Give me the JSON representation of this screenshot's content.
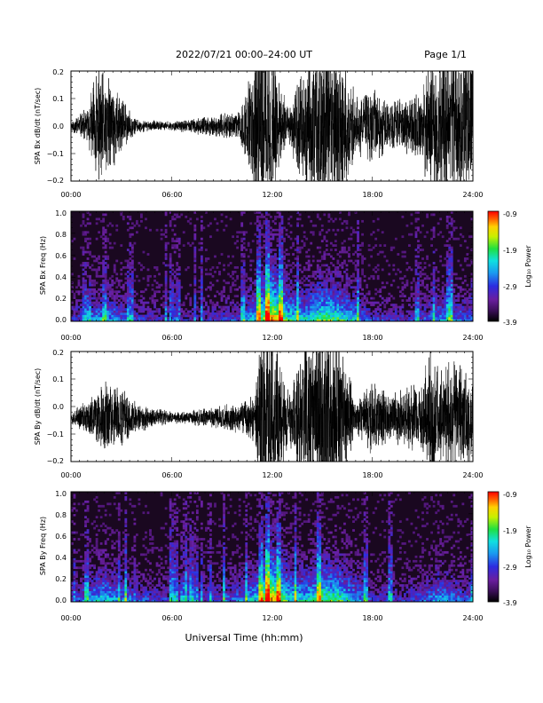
{
  "header": {
    "title": "2022/07/21  00:00–24:00 UT",
    "page": "Page 1/1"
  },
  "xaxis": {
    "label": "Universal Time (hh:mm)",
    "ticks": [
      "00:00",
      "06:00",
      "12:00",
      "18:00",
      "24:00"
    ],
    "range": [
      0,
      24
    ]
  },
  "colorbar": {
    "label": "Log₁₀ Power",
    "ticks": [
      "-0.9",
      "-1.9",
      "-2.9",
      "-3.9"
    ],
    "range": [
      -3.9,
      -0.9
    ]
  },
  "colors": {
    "trace": "#000000",
    "spectrogram_background": "#1a0820",
    "colormap": [
      "#000000",
      "#3c0f5a",
      "#6a1fa0",
      "#2c2ce0",
      "#1a9af0",
      "#10e0e0",
      "#20e040",
      "#c8f000",
      "#ffd000",
      "#ff6000",
      "#ff0000"
    ]
  },
  "chart_data": [
    {
      "id": "bx",
      "type": "line",
      "ylabel": "SPA Bx dB/dt (nT/sec)",
      "ylim": [
        -0.2,
        0.2
      ],
      "yticks": [
        "0.2",
        "0.1",
        "0.0",
        "−0.1",
        "−0.2"
      ],
      "amplitude_envelope": {
        "x_hours": [
          0,
          1,
          1.5,
          2.5,
          3.5,
          4,
          6,
          8,
          10,
          10.8,
          11,
          12,
          13,
          14,
          15,
          16,
          17,
          18,
          19,
          20,
          21,
          21.5,
          22,
          23,
          24
        ],
        "amplitude": [
          0.02,
          0.06,
          0.2,
          0.15,
          0.05,
          0.02,
          0.015,
          0.03,
          0.05,
          0.18,
          0.3,
          0.25,
          0.05,
          0.25,
          0.3,
          0.28,
          0.1,
          0.12,
          0.08,
          0.1,
          0.12,
          0.28,
          0.2,
          0.3,
          0.25
        ]
      },
      "baseline": 0.0
    },
    {
      "id": "bx-freq",
      "type": "heatmap",
      "ylabel": "SPA Bx Freq (Hz)",
      "ylim": [
        0.0,
        1.0
      ],
      "yticks": [
        "1.0",
        "0.8",
        "0.6",
        "0.4",
        "0.2",
        "0.0"
      ],
      "activity_envelope": {
        "x_hours": [
          0,
          1,
          2,
          3,
          4,
          6,
          8,
          10,
          11,
          12,
          13,
          14,
          15,
          16,
          17,
          18,
          20,
          21,
          22,
          23,
          24
        ],
        "intensity": [
          0.2,
          0.35,
          0.45,
          0.35,
          0.25,
          0.2,
          0.2,
          0.3,
          0.5,
          0.9,
          0.55,
          0.5,
          0.65,
          0.6,
          0.45,
          0.25,
          0.25,
          0.3,
          0.4,
          0.35,
          0.3
        ]
      }
    },
    {
      "id": "by",
      "type": "line",
      "ylabel": "SPA By dB/dt (nT/sec)",
      "ylim": [
        -0.2,
        0.2
      ],
      "yticks": [
        "0.2",
        "0.1",
        "0.0",
        "−0.1",
        "−0.2"
      ],
      "amplitude_envelope": {
        "x_hours": [
          0,
          1,
          2,
          3,
          4,
          6,
          8,
          10,
          11,
          11.3,
          12,
          13,
          14,
          15,
          16,
          17,
          18,
          19,
          20,
          21,
          21.5,
          22,
          23,
          24
        ],
        "amplitude": [
          0.02,
          0.06,
          0.12,
          0.1,
          0.05,
          0.02,
          0.03,
          0.05,
          0.08,
          0.3,
          0.3,
          0.08,
          0.3,
          0.3,
          0.28,
          0.05,
          0.12,
          0.08,
          0.1,
          0.12,
          0.25,
          0.15,
          0.2,
          0.15
        ]
      },
      "baseline": -0.04
    },
    {
      "id": "by-freq",
      "type": "heatmap",
      "ylabel": "SPA By Freq (Hz)",
      "ylim": [
        0.0,
        1.0
      ],
      "yticks": [
        "1.0",
        "0.8",
        "0.6",
        "0.4",
        "0.2",
        "0.0"
      ],
      "activity_envelope": {
        "x_hours": [
          0,
          1,
          2,
          3,
          4,
          6,
          8,
          10,
          11,
          12,
          13,
          14,
          15,
          16,
          17,
          18,
          20,
          21,
          22,
          23,
          24
        ],
        "intensity": [
          0.25,
          0.4,
          0.5,
          0.4,
          0.3,
          0.25,
          0.25,
          0.35,
          0.5,
          0.9,
          0.55,
          0.5,
          0.65,
          0.6,
          0.45,
          0.25,
          0.25,
          0.3,
          0.45,
          0.35,
          0.3
        ]
      }
    }
  ]
}
